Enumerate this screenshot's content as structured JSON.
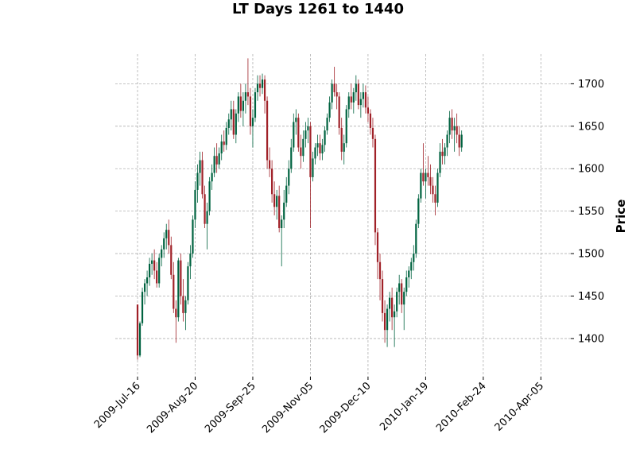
{
  "chart_data": {
    "type": "candlestick",
    "title": "LT Days 1261 to 1440",
    "ylabel": "Price",
    "xlabel": "",
    "ylim": [
      1355,
      1735
    ],
    "y_ticks": [
      1400,
      1450,
      1500,
      1550,
      1600,
      1650,
      1700
    ],
    "x_ticks": [
      {
        "label": "2009-Jul-16",
        "index": 0
      },
      {
        "label": "2009-Aug-20",
        "index": 24
      },
      {
        "label": "2009-Sep-25",
        "index": 48
      },
      {
        "label": "2009-Nov-05",
        "index": 72
      },
      {
        "label": "2009-Dec-10",
        "index": 96
      },
      {
        "label": "2010-Jan-19",
        "index": 120
      },
      {
        "label": "2010-Feb-24",
        "index": 144
      },
      {
        "label": "2010-Apr-05",
        "index": 168
      }
    ],
    "grid": true,
    "up_color": "#006340",
    "down_color": "#a02128",
    "candles": [
      {
        "o": 1440,
        "h": 1440,
        "l": 1375,
        "c": 1380
      },
      {
        "o": 1380,
        "h": 1420,
        "l": 1378,
        "c": 1418
      },
      {
        "o": 1418,
        "h": 1460,
        "l": 1415,
        "c": 1455
      },
      {
        "o": 1455,
        "h": 1470,
        "l": 1440,
        "c": 1465
      },
      {
        "o": 1465,
        "h": 1480,
        "l": 1450,
        "c": 1472
      },
      {
        "o": 1472,
        "h": 1495,
        "l": 1462,
        "c": 1488
      },
      {
        "o": 1488,
        "h": 1500,
        "l": 1475,
        "c": 1492
      },
      {
        "o": 1492,
        "h": 1505,
        "l": 1470,
        "c": 1480
      },
      {
        "o": 1480,
        "h": 1490,
        "l": 1460,
        "c": 1465
      },
      {
        "o": 1465,
        "h": 1500,
        "l": 1460,
        "c": 1495
      },
      {
        "o": 1495,
        "h": 1510,
        "l": 1485,
        "c": 1505
      },
      {
        "o": 1505,
        "h": 1525,
        "l": 1495,
        "c": 1518
      },
      {
        "o": 1518,
        "h": 1535,
        "l": 1505,
        "c": 1528
      },
      {
        "o": 1528,
        "h": 1540,
        "l": 1500,
        "c": 1510
      },
      {
        "o": 1510,
        "h": 1520,
        "l": 1470,
        "c": 1475
      },
      {
        "o": 1475,
        "h": 1490,
        "l": 1430,
        "c": 1435
      },
      {
        "o": 1435,
        "h": 1445,
        "l": 1395,
        "c": 1425
      },
      {
        "o": 1425,
        "h": 1495,
        "l": 1420,
        "c": 1492
      },
      {
        "o": 1492,
        "h": 1500,
        "l": 1440,
        "c": 1450
      },
      {
        "o": 1450,
        "h": 1470,
        "l": 1420,
        "c": 1430
      },
      {
        "o": 1430,
        "h": 1450,
        "l": 1410,
        "c": 1445
      },
      {
        "o": 1445,
        "h": 1490,
        "l": 1440,
        "c": 1485
      },
      {
        "o": 1485,
        "h": 1510,
        "l": 1470,
        "c": 1500
      },
      {
        "o": 1500,
        "h": 1545,
        "l": 1495,
        "c": 1540
      },
      {
        "o": 1540,
        "h": 1585,
        "l": 1530,
        "c": 1575
      },
      {
        "o": 1575,
        "h": 1605,
        "l": 1560,
        "c": 1595
      },
      {
        "o": 1595,
        "h": 1620,
        "l": 1580,
        "c": 1610
      },
      {
        "o": 1610,
        "h": 1620,
        "l": 1565,
        "c": 1570
      },
      {
        "o": 1570,
        "h": 1580,
        "l": 1530,
        "c": 1535
      },
      {
        "o": 1535,
        "h": 1560,
        "l": 1505,
        "c": 1550
      },
      {
        "o": 1550,
        "h": 1590,
        "l": 1545,
        "c": 1585
      },
      {
        "o": 1585,
        "h": 1605,
        "l": 1575,
        "c": 1595
      },
      {
        "o": 1595,
        "h": 1625,
        "l": 1590,
        "c": 1615
      },
      {
        "o": 1615,
        "h": 1630,
        "l": 1595,
        "c": 1605
      },
      {
        "o": 1605,
        "h": 1625,
        "l": 1600,
        "c": 1618
      },
      {
        "o": 1618,
        "h": 1640,
        "l": 1610,
        "c": 1632
      },
      {
        "o": 1632,
        "h": 1645,
        "l": 1620,
        "c": 1628
      },
      {
        "o": 1628,
        "h": 1655,
        "l": 1622,
        "c": 1648
      },
      {
        "o": 1648,
        "h": 1665,
        "l": 1640,
        "c": 1658
      },
      {
        "o": 1658,
        "h": 1680,
        "l": 1645,
        "c": 1670
      },
      {
        "o": 1670,
        "h": 1680,
        "l": 1635,
        "c": 1640
      },
      {
        "o": 1640,
        "h": 1670,
        "l": 1630,
        "c": 1665
      },
      {
        "o": 1665,
        "h": 1690,
        "l": 1655,
        "c": 1685
      },
      {
        "o": 1685,
        "h": 1700,
        "l": 1660,
        "c": 1668
      },
      {
        "o": 1668,
        "h": 1690,
        "l": 1650,
        "c": 1680
      },
      {
        "o": 1680,
        "h": 1700,
        "l": 1665,
        "c": 1690
      },
      {
        "o": 1690,
        "h": 1730,
        "l": 1675,
        "c": 1685
      },
      {
        "o": 1685,
        "h": 1695,
        "l": 1640,
        "c": 1650
      },
      {
        "o": 1650,
        "h": 1670,
        "l": 1625,
        "c": 1660
      },
      {
        "o": 1660,
        "h": 1695,
        "l": 1655,
        "c": 1690
      },
      {
        "o": 1690,
        "h": 1710,
        "l": 1680,
        "c": 1700
      },
      {
        "o": 1700,
        "h": 1710,
        "l": 1685,
        "c": 1695
      },
      {
        "o": 1695,
        "h": 1712,
        "l": 1688,
        "c": 1705
      },
      {
        "o": 1705,
        "h": 1710,
        "l": 1665,
        "c": 1680
      },
      {
        "o": 1680,
        "h": 1685,
        "l": 1600,
        "c": 1610
      },
      {
        "o": 1610,
        "h": 1625,
        "l": 1590,
        "c": 1600
      },
      {
        "o": 1600,
        "h": 1610,
        "l": 1560,
        "c": 1570
      },
      {
        "o": 1570,
        "h": 1585,
        "l": 1545,
        "c": 1555
      },
      {
        "o": 1555,
        "h": 1575,
        "l": 1540,
        "c": 1568
      },
      {
        "o": 1568,
        "h": 1580,
        "l": 1525,
        "c": 1530
      },
      {
        "o": 1530,
        "h": 1545,
        "l": 1485,
        "c": 1540
      },
      {
        "o": 1540,
        "h": 1575,
        "l": 1530,
        "c": 1560
      },
      {
        "o": 1560,
        "h": 1590,
        "l": 1555,
        "c": 1580
      },
      {
        "o": 1580,
        "h": 1610,
        "l": 1570,
        "c": 1600
      },
      {
        "o": 1600,
        "h": 1635,
        "l": 1595,
        "c": 1625
      },
      {
        "o": 1625,
        "h": 1665,
        "l": 1620,
        "c": 1655
      },
      {
        "o": 1655,
        "h": 1670,
        "l": 1640,
        "c": 1660
      },
      {
        "o": 1660,
        "h": 1665,
        "l": 1620,
        "c": 1625
      },
      {
        "o": 1625,
        "h": 1640,
        "l": 1600,
        "c": 1615
      },
      {
        "o": 1615,
        "h": 1645,
        "l": 1608,
        "c": 1635
      },
      {
        "o": 1635,
        "h": 1655,
        "l": 1625,
        "c": 1645
      },
      {
        "o": 1645,
        "h": 1660,
        "l": 1630,
        "c": 1650
      },
      {
        "o": 1650,
        "h": 1655,
        "l": 1530,
        "c": 1590
      },
      {
        "o": 1590,
        "h": 1620,
        "l": 1585,
        "c": 1612
      },
      {
        "o": 1612,
        "h": 1630,
        "l": 1605,
        "c": 1625
      },
      {
        "o": 1625,
        "h": 1640,
        "l": 1615,
        "c": 1630
      },
      {
        "o": 1630,
        "h": 1640,
        "l": 1610,
        "c": 1618
      },
      {
        "o": 1618,
        "h": 1635,
        "l": 1610,
        "c": 1628
      },
      {
        "o": 1628,
        "h": 1650,
        "l": 1620,
        "c": 1645
      },
      {
        "o": 1645,
        "h": 1665,
        "l": 1640,
        "c": 1660
      },
      {
        "o": 1660,
        "h": 1685,
        "l": 1655,
        "c": 1678
      },
      {
        "o": 1678,
        "h": 1705,
        "l": 1670,
        "c": 1700
      },
      {
        "o": 1700,
        "h": 1720,
        "l": 1685,
        "c": 1690
      },
      {
        "o": 1690,
        "h": 1700,
        "l": 1670,
        "c": 1685
      },
      {
        "o": 1685,
        "h": 1690,
        "l": 1640,
        "c": 1648
      },
      {
        "o": 1648,
        "h": 1660,
        "l": 1610,
        "c": 1620
      },
      {
        "o": 1620,
        "h": 1640,
        "l": 1605,
        "c": 1630
      },
      {
        "o": 1630,
        "h": 1675,
        "l": 1625,
        "c": 1670
      },
      {
        "o": 1670,
        "h": 1690,
        "l": 1660,
        "c": 1685
      },
      {
        "o": 1685,
        "h": 1700,
        "l": 1670,
        "c": 1678
      },
      {
        "o": 1678,
        "h": 1695,
        "l": 1665,
        "c": 1690
      },
      {
        "o": 1690,
        "h": 1710,
        "l": 1680,
        "c": 1700
      },
      {
        "o": 1700,
        "h": 1705,
        "l": 1670,
        "c": 1675
      },
      {
        "o": 1675,
        "h": 1690,
        "l": 1660,
        "c": 1682
      },
      {
        "o": 1682,
        "h": 1700,
        "l": 1672,
        "c": 1690
      },
      {
        "o": 1690,
        "h": 1698,
        "l": 1665,
        "c": 1672
      },
      {
        "o": 1672,
        "h": 1685,
        "l": 1655,
        "c": 1665
      },
      {
        "o": 1665,
        "h": 1670,
        "l": 1640,
        "c": 1648
      },
      {
        "o": 1648,
        "h": 1660,
        "l": 1625,
        "c": 1635
      },
      {
        "o": 1635,
        "h": 1640,
        "l": 1510,
        "c": 1525
      },
      {
        "o": 1525,
        "h": 1530,
        "l": 1470,
        "c": 1490
      },
      {
        "o": 1490,
        "h": 1500,
        "l": 1445,
        "c": 1470
      },
      {
        "o": 1470,
        "h": 1480,
        "l": 1420,
        "c": 1430
      },
      {
        "o": 1430,
        "h": 1445,
        "l": 1395,
        "c": 1410
      },
      {
        "o": 1410,
        "h": 1440,
        "l": 1390,
        "c": 1435
      },
      {
        "o": 1435,
        "h": 1455,
        "l": 1420,
        "c": 1448
      },
      {
        "o": 1448,
        "h": 1460,
        "l": 1410,
        "c": 1425
      },
      {
        "o": 1425,
        "h": 1440,
        "l": 1390,
        "c": 1432
      },
      {
        "o": 1432,
        "h": 1460,
        "l": 1425,
        "c": 1455
      },
      {
        "o": 1455,
        "h": 1475,
        "l": 1440,
        "c": 1465
      },
      {
        "o": 1465,
        "h": 1470,
        "l": 1430,
        "c": 1440
      },
      {
        "o": 1440,
        "h": 1460,
        "l": 1410,
        "c": 1455
      },
      {
        "o": 1455,
        "h": 1480,
        "l": 1450,
        "c": 1472
      },
      {
        "o": 1472,
        "h": 1485,
        "l": 1460,
        "c": 1480
      },
      {
        "o": 1480,
        "h": 1495,
        "l": 1470,
        "c": 1490
      },
      {
        "o": 1490,
        "h": 1510,
        "l": 1480,
        "c": 1500
      },
      {
        "o": 1500,
        "h": 1540,
        "l": 1495,
        "c": 1535
      },
      {
        "o": 1535,
        "h": 1570,
        "l": 1530,
        "c": 1565
      },
      {
        "o": 1565,
        "h": 1600,
        "l": 1560,
        "c": 1595
      },
      {
        "o": 1595,
        "h": 1630,
        "l": 1580,
        "c": 1585
      },
      {
        "o": 1585,
        "h": 1600,
        "l": 1565,
        "c": 1595
      },
      {
        "o": 1595,
        "h": 1615,
        "l": 1580,
        "c": 1590
      },
      {
        "o": 1590,
        "h": 1605,
        "l": 1570,
        "c": 1580
      },
      {
        "o": 1580,
        "h": 1590,
        "l": 1560,
        "c": 1570
      },
      {
        "o": 1570,
        "h": 1580,
        "l": 1545,
        "c": 1560
      },
      {
        "o": 1560,
        "h": 1600,
        "l": 1555,
        "c": 1595
      },
      {
        "o": 1595,
        "h": 1630,
        "l": 1590,
        "c": 1620
      },
      {
        "o": 1620,
        "h": 1635,
        "l": 1605,
        "c": 1615
      },
      {
        "o": 1615,
        "h": 1630,
        "l": 1605,
        "c": 1625
      },
      {
        "o": 1625,
        "h": 1645,
        "l": 1615,
        "c": 1640
      },
      {
        "o": 1640,
        "h": 1668,
        "l": 1630,
        "c": 1660
      },
      {
        "o": 1660,
        "h": 1670,
        "l": 1635,
        "c": 1645
      },
      {
        "o": 1645,
        "h": 1660,
        "l": 1620,
        "c": 1650
      },
      {
        "o": 1650,
        "h": 1665,
        "l": 1630,
        "c": 1640
      },
      {
        "o": 1640,
        "h": 1650,
        "l": 1615,
        "c": 1625
      },
      {
        "o": 1625,
        "h": 1645,
        "l": 1620,
        "c": 1640
      }
    ]
  }
}
